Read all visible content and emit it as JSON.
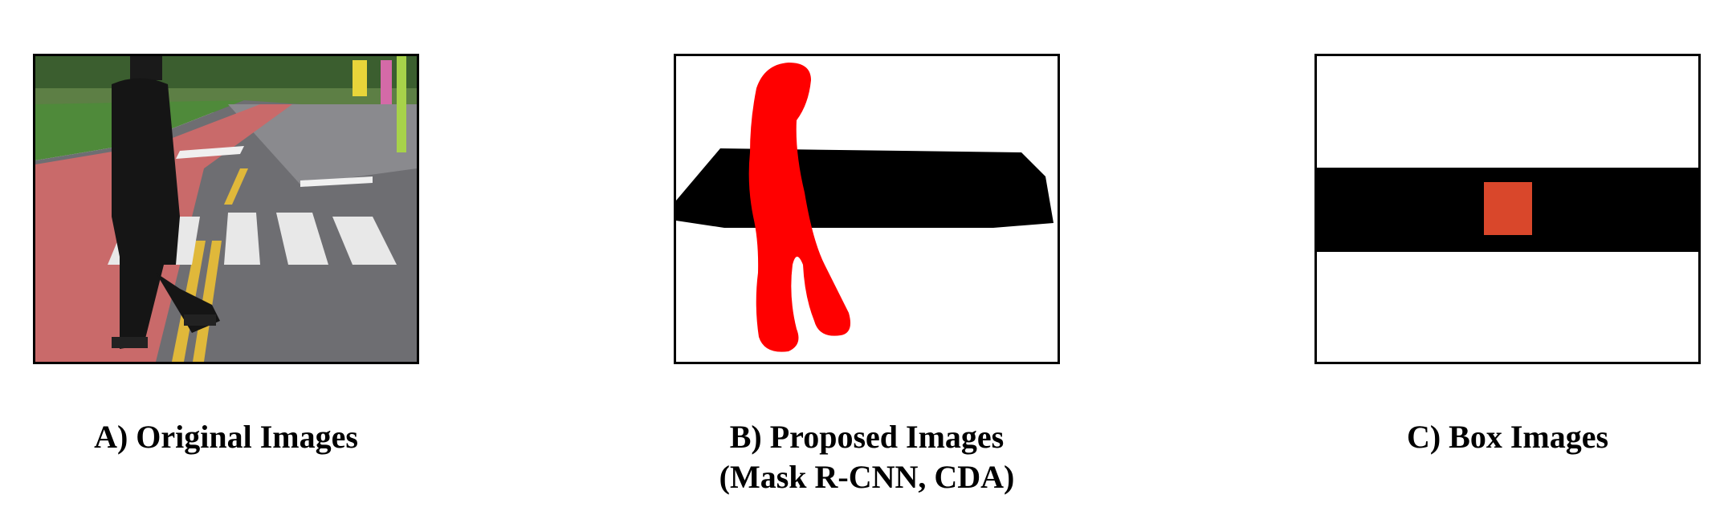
{
  "panels": [
    {
      "id": "original",
      "caption_line1": "A) Original Images",
      "caption_line2": ""
    },
    {
      "id": "proposed",
      "caption_line1": "B) Proposed Images",
      "caption_line2": "(Mask R-CNN, CDA)"
    },
    {
      "id": "box",
      "caption_line1": "C) Box Images",
      "caption_line2": ""
    }
  ],
  "colors": {
    "pedestrian_mask": "#ff0000",
    "crosswalk_mask": "#000000",
    "pedestrian_box": "#d9472b",
    "bike_lane": "#c96a6a",
    "asphalt": "#6e6e72",
    "grass": "#4f8a3a",
    "crosswalk_stripe": "#e8e8e8",
    "lane_yellow": "#e0b83a"
  }
}
